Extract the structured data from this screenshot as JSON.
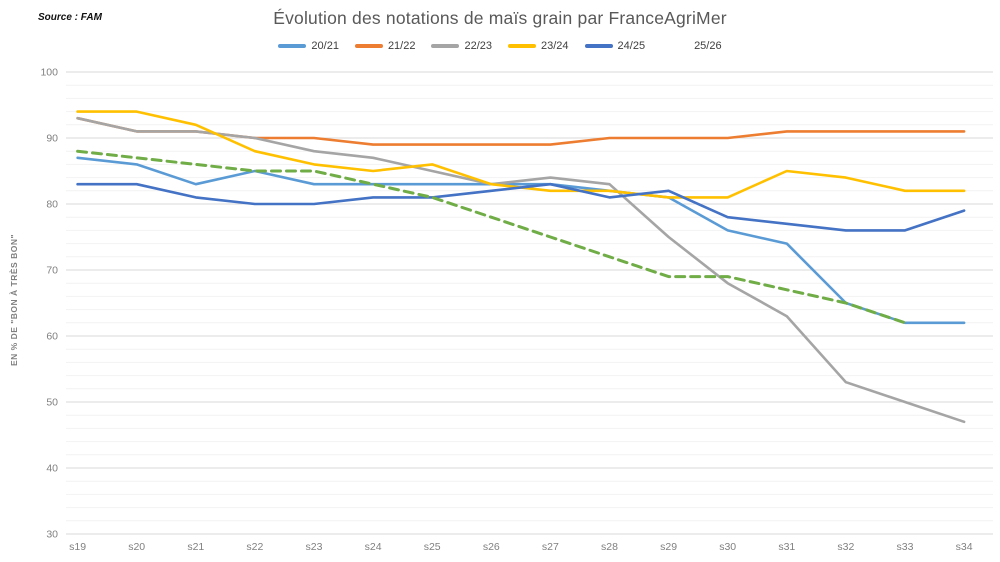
{
  "source_label": "Source : FAM",
  "chart_data": {
    "type": "line",
    "title": "Évolution des notations de maïs grain par FranceAgriMer",
    "ylabel": "EN % DE \"BON À TRÈS BON\"",
    "xlabel": "",
    "categories": [
      "s19",
      "s20",
      "s21",
      "s22",
      "s23",
      "s24",
      "s25",
      "s26",
      "s27",
      "s28",
      "s29",
      "s30",
      "s31",
      "s32",
      "s33",
      "s34"
    ],
    "ylim": [
      30,
      100
    ],
    "ytick_step": 10,
    "minor_grid_step": 2,
    "grid": true,
    "legend_position": "top-center",
    "series": [
      {
        "name": "20/21",
        "color": "#5B9BD5",
        "dashed": false,
        "values": [
          87,
          86,
          83,
          85,
          83,
          83,
          83,
          83,
          83,
          82,
          81,
          76,
          74,
          65,
          62,
          62
        ]
      },
      {
        "name": "21/22",
        "color": "#ED7D31",
        "dashed": false,
        "values": [
          93,
          91,
          91,
          90,
          90,
          89,
          89,
          89,
          89,
          90,
          90,
          90,
          91,
          91,
          91,
          91
        ]
      },
      {
        "name": "22/23",
        "color": "#A5A5A5",
        "dashed": false,
        "values": [
          93,
          91,
          91,
          90,
          88,
          87,
          85,
          83,
          84,
          83,
          75,
          68,
          63,
          53,
          50,
          47
        ]
      },
      {
        "name": "23/24",
        "color": "#FFC000",
        "dashed": false,
        "values": [
          94,
          94,
          92,
          88,
          86,
          85,
          86,
          83,
          82,
          82,
          81,
          81,
          85,
          84,
          82,
          82
        ]
      },
      {
        "name": "24/25",
        "color": "#4472C4",
        "dashed": false,
        "values": [
          83,
          83,
          81,
          80,
          80,
          81,
          81,
          82,
          83,
          81,
          82,
          78,
          77,
          76,
          76,
          79
        ]
      },
      {
        "name": "25/26",
        "color": "#70AD47",
        "dashed": true,
        "values": [
          88,
          87,
          86,
          85,
          85,
          83,
          81,
          78,
          75,
          72,
          69,
          69,
          67,
          65,
          62
        ]
      }
    ],
    "axis_colors": {
      "tick_label": "#808080",
      "major_grid": "#d9d9d9",
      "minor_grid": "#f2f2f2"
    }
  }
}
